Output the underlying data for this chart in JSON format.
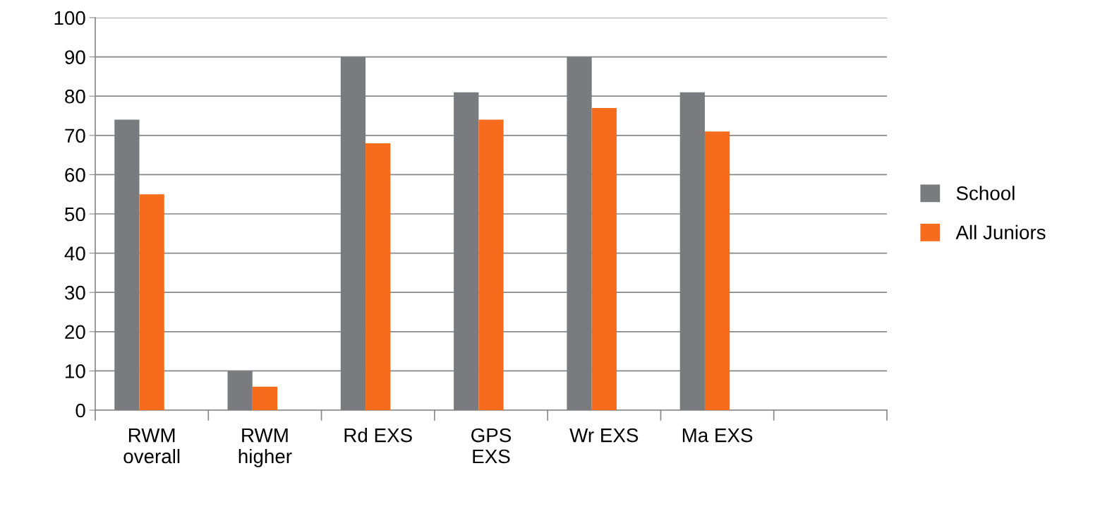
{
  "chart_data": {
    "type": "bar",
    "categories": [
      "RWM overall",
      "RWM higher",
      "Rd EXS",
      "GPS EXS",
      "Wr EXS",
      "Ma EXS",
      null
    ],
    "series": [
      {
        "name": "School",
        "color": "#7a7b7f",
        "values": [
          74,
          10,
          90,
          81,
          90,
          81,
          null
        ]
      },
      {
        "name": "All Juniors",
        "color": "#f76b1c",
        "values": [
          55,
          6,
          68,
          74,
          77,
          71,
          null
        ]
      }
    ],
    "ylim": [
      0,
      100
    ],
    "yticks": [
      0,
      10,
      20,
      30,
      40,
      50,
      60,
      70,
      80,
      90,
      100
    ],
    "grid": "y",
    "legend": "right"
  }
}
